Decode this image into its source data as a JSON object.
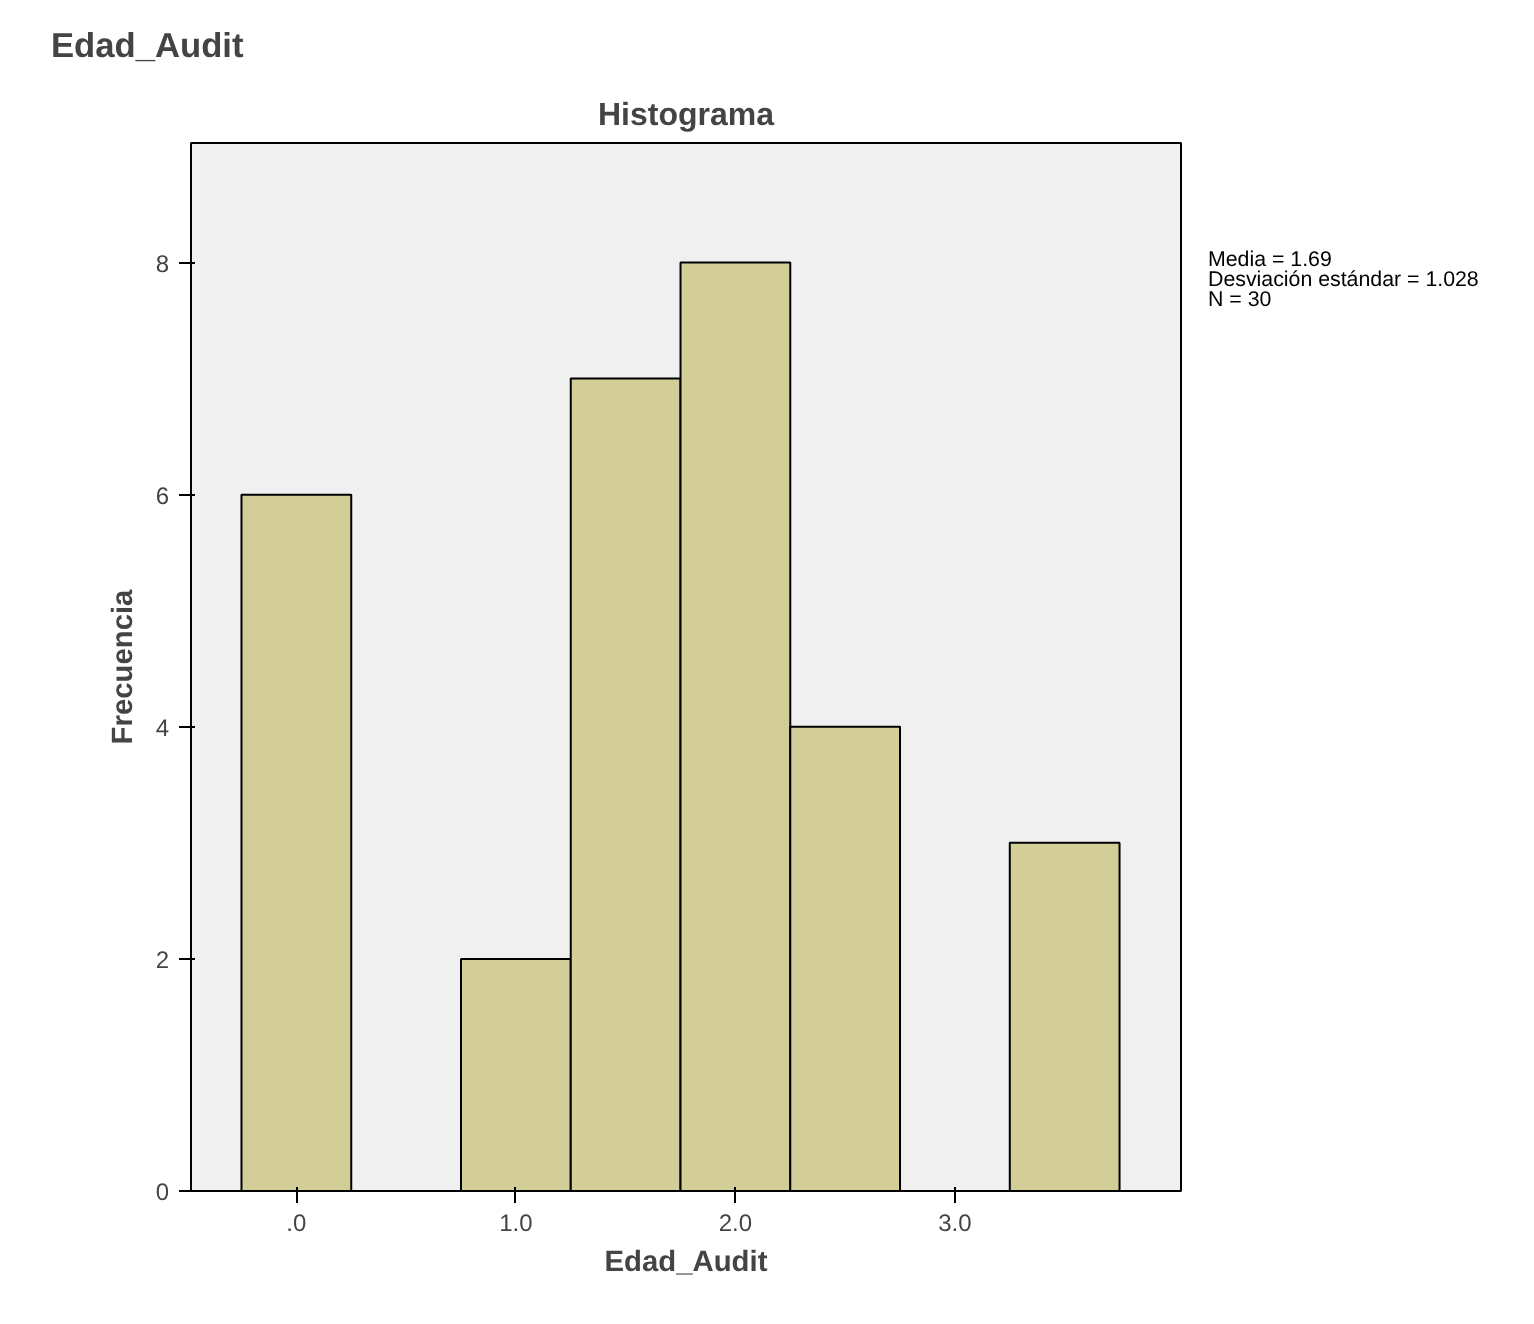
{
  "chart_data": {
    "type": "histogram",
    "title": "Edad_Audit",
    "subtitle": "Histograma",
    "xlabel": "Edad_Audit",
    "ylabel": "Frecuencia",
    "bins": [
      -0.25,
      0.25,
      0.75,
      1.25,
      1.75,
      2.25,
      2.75,
      3.25,
      3.75
    ],
    "values": [
      6,
      0,
      2,
      7,
      8,
      4,
      0,
      3
    ],
    "color": "#d3ce97",
    "xlim": [
      -0.48,
      4.03
    ],
    "ylim": [
      0,
      9.03
    ],
    "xticks": [
      {
        "value": 0,
        "label": ".0"
      },
      {
        "value": 1,
        "label": "1.0"
      },
      {
        "value": 2,
        "label": "2.0"
      },
      {
        "value": 3,
        "label": "3.0"
      }
    ],
    "yticks": [
      0,
      2,
      4,
      6,
      8
    ],
    "grid": false,
    "annotations": [
      "Media = 1.69",
      "Desviación estándar = 1.028",
      "N = 30"
    ]
  }
}
